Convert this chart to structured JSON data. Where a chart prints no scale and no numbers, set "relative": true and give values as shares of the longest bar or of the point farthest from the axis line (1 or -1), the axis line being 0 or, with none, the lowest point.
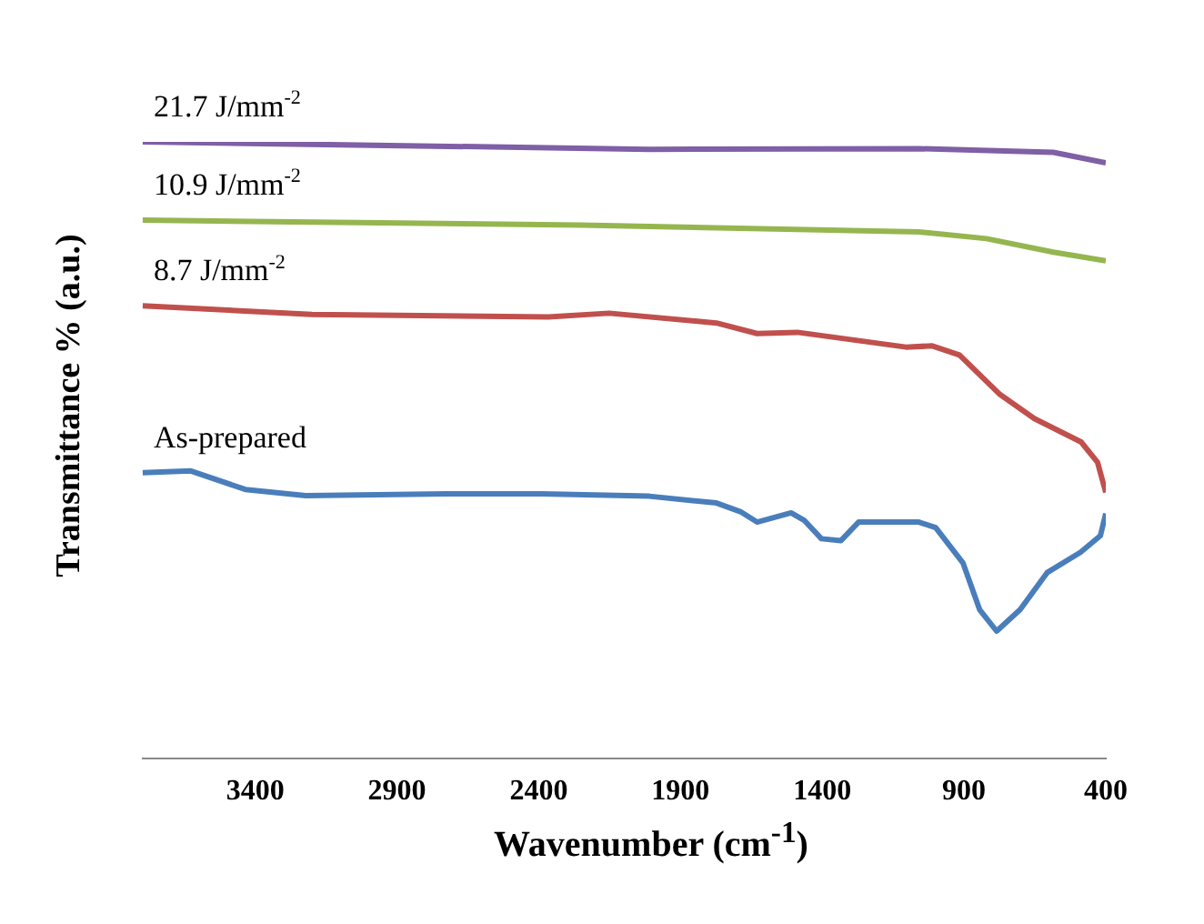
{
  "chart_data": {
    "type": "line",
    "xlabel": "Wavenumber (cm$^{-1}$)",
    "ylabel": "Transmittance % (a.u.)",
    "relative": true,
    "xlim": [
      3800,
      400
    ],
    "xticks": [
      3400,
      2900,
      2400,
      1900,
      1400,
      900,
      400
    ],
    "grid": false,
    "legend": false,
    "marker": "none",
    "line_style": "solid",
    "series": [
      {
        "name": "21.7 J/mm$^{-2}$",
        "color": "#7f5fa5",
        "x": [
          3797,
          2010,
          1059,
          585,
          400
        ],
        "values": [
          1.0,
          0.988,
          0.989,
          0.983,
          0.966
        ]
      },
      {
        "name": "10.9 J/mm$^{-2}$",
        "color": "#95b64f",
        "x": [
          3797,
          2249,
          1059,
          821,
          585,
          400
        ],
        "values": [
          0.873,
          0.865,
          0.854,
          0.843,
          0.821,
          0.807
        ]
      },
      {
        "name": "8.7 J/mm$^{-2}$",
        "color": "#c0504d",
        "x": [
          3797,
          3200,
          2366,
          2152,
          1773,
          1630,
          1488,
          1105,
          1012,
          916,
          773,
          652,
          487,
          429,
          400
        ],
        "values": [
          0.734,
          0.72,
          0.716,
          0.722,
          0.706,
          0.689,
          0.691,
          0.667,
          0.669,
          0.654,
          0.59,
          0.551,
          0.513,
          0.48,
          0.431
        ]
      },
      {
        "name": "As-prepared",
        "color": "#4a7ebb",
        "x": [
          3797,
          3627,
          3435,
          3222,
          2725,
          2390,
          2010,
          1773,
          1689,
          1630,
          1510,
          1464,
          1403,
          1334,
          1272,
          1059,
          1000,
          904,
          845,
          785,
          702,
          607,
          489,
          419,
          400
        ],
        "values": [
          0.463,
          0.466,
          0.436,
          0.426,
          0.429,
          0.429,
          0.425,
          0.414,
          0.4,
          0.383,
          0.398,
          0.386,
          0.356,
          0.353,
          0.383,
          0.383,
          0.374,
          0.317,
          0.241,
          0.206,
          0.241,
          0.301,
          0.334,
          0.361,
          0.397
        ]
      }
    ]
  }
}
